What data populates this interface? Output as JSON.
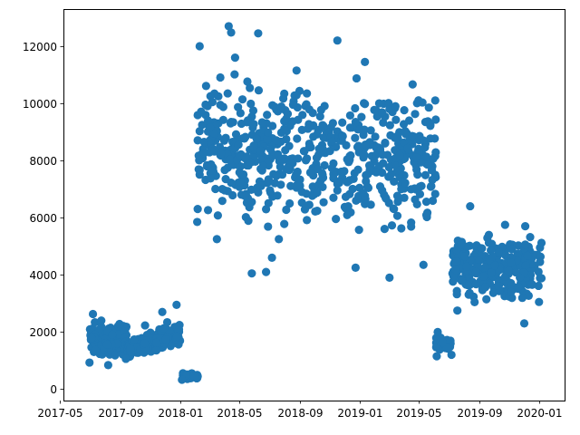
{
  "chart_data": {
    "type": "scatter",
    "title": "",
    "xlabel": "",
    "ylabel": "",
    "x_axis_type": "date",
    "xlim": [
      "2017-05-08",
      "2020-02-21"
    ],
    "ylim": [
      -400,
      13300
    ],
    "x_ticks": [
      "2017-05-01",
      "2017-09-01",
      "2018-01-01",
      "2018-05-01",
      "2018-09-01",
      "2019-01-01",
      "2019-05-01",
      "2019-09-01",
      "2020-01-01"
    ],
    "x_tick_labels": [
      "2017-05",
      "2017-09",
      "2018-01",
      "2018-05",
      "2018-09",
      "2019-01",
      "2019-05",
      "2019-09",
      "2020-01"
    ],
    "y_ticks": [
      0,
      2000,
      4000,
      6000,
      8000,
      10000,
      12000
    ],
    "y_tick_labels": [
      "0",
      "2000",
      "4000",
      "6000",
      "8000",
      "10000",
      "12000"
    ],
    "grid": false,
    "legend": "none",
    "marker_color": "#1f77b4",
    "series": [
      {
        "clusters": [
          {
            "start": "2017-07-01",
            "end": "2017-09-15",
            "y_min": 800,
            "y_max": 2650,
            "points": 170
          },
          {
            "start": "2017-09-15",
            "end": "2017-12-31",
            "y_min": 850,
            "y_max": 2950,
            "points": 210
          },
          {
            "start": "2018-01-05",
            "end": "2018-02-05",
            "y_min": 280,
            "y_max": 650,
            "points": 28
          },
          {
            "start": "2018-02-05",
            "end": "2018-09-15",
            "y_min": 4000,
            "y_max": 12700,
            "points": 300
          },
          {
            "start": "2018-09-15",
            "end": "2019-06-05",
            "y_min": 3900,
            "y_max": 12200,
            "points": 320
          },
          {
            "start": "2019-06-05",
            "end": "2019-07-05",
            "y_min": 1150,
            "y_max": 2000,
            "points": 45
          },
          {
            "start": "2019-07-05",
            "end": "2020-01-05",
            "y_min": 2300,
            "y_max": 6200,
            "points": 260
          }
        ],
        "points": [
          [
            "2017-06-30",
            930
          ],
          [
            "2017-07-07",
            2630
          ],
          [
            "2017-07-24",
            2400
          ],
          [
            "2017-08-07",
            840
          ],
          [
            "2017-08-21",
            1180
          ],
          [
            "2017-09-12",
            1060
          ],
          [
            "2017-10-21",
            2230
          ],
          [
            "2017-11-25",
            2700
          ],
          [
            "2017-12-24",
            2950
          ],
          [
            "2018-01-04",
            330
          ],
          [
            "2018-01-28",
            460
          ],
          [
            "2018-02-04",
            5850
          ],
          [
            "2018-02-09",
            12000
          ],
          [
            "2018-03-16",
            5250
          ],
          [
            "2018-04-09",
            12700
          ],
          [
            "2018-04-14",
            12480
          ],
          [
            "2018-04-22",
            11600
          ],
          [
            "2018-05-26",
            4050
          ],
          [
            "2018-06-08",
            12450
          ],
          [
            "2018-06-24",
            4100
          ],
          [
            "2018-07-06",
            4600
          ],
          [
            "2018-07-20",
            5250
          ],
          [
            "2018-11-16",
            12200
          ],
          [
            "2018-12-23",
            4250
          ],
          [
            "2019-01-11",
            11450
          ],
          [
            "2019-03-02",
            3900
          ],
          [
            "2019-03-14",
            9900
          ],
          [
            "2019-04-11",
            9400
          ],
          [
            "2019-05-10",
            4350
          ],
          [
            "2019-05-24",
            9250
          ],
          [
            "2019-06-06",
            1150
          ],
          [
            "2019-06-08",
            2000
          ],
          [
            "2019-07-06",
            1200
          ],
          [
            "2019-07-18",
            2750
          ],
          [
            "2019-08-13",
            6400
          ],
          [
            "2019-10-23",
            5750
          ],
          [
            "2019-12-01",
            2300
          ],
          [
            "2019-12-03",
            5700
          ],
          [
            "2019-12-31",
            3050
          ],
          [
            "2020-01-02",
            4450
          ]
        ]
      }
    ]
  }
}
